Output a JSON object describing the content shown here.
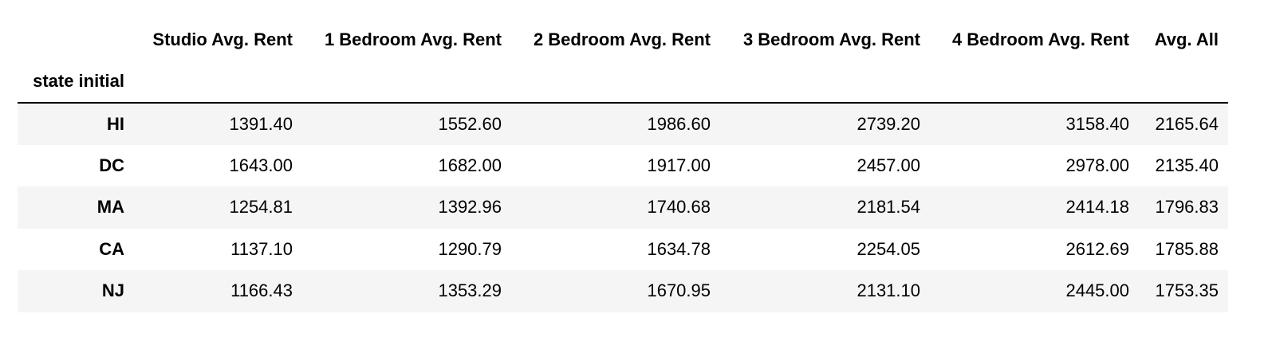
{
  "table": {
    "index_name": "state initial",
    "columns": [
      "Studio Avg. Rent",
      "1 Bedroom Avg. Rent",
      "2 Bedroom Avg. Rent",
      "3 Bedroom Avg. Rent",
      "4 Bedroom Avg. Rent",
      "Avg. All"
    ],
    "rows": [
      {
        "index": "HI",
        "values": [
          "1391.40",
          "1552.60",
          "1986.60",
          "2739.20",
          "3158.40",
          "2165.64"
        ]
      },
      {
        "index": "DC",
        "values": [
          "1643.00",
          "1682.00",
          "1917.00",
          "2457.00",
          "2978.00",
          "2135.40"
        ]
      },
      {
        "index": "MA",
        "values": [
          "1254.81",
          "1392.96",
          "1740.68",
          "2181.54",
          "2414.18",
          "1796.83"
        ]
      },
      {
        "index": "CA",
        "values": [
          "1137.10",
          "1290.79",
          "1634.78",
          "2254.05",
          "2612.69",
          "1785.88"
        ]
      },
      {
        "index": "NJ",
        "values": [
          "1166.43",
          "1353.29",
          "1670.95",
          "2131.10",
          "2445.00",
          "1753.35"
        ]
      }
    ]
  },
  "colors": {
    "stripe": "#f5f5f5",
    "background": "#ffffff",
    "border": "#000000"
  }
}
